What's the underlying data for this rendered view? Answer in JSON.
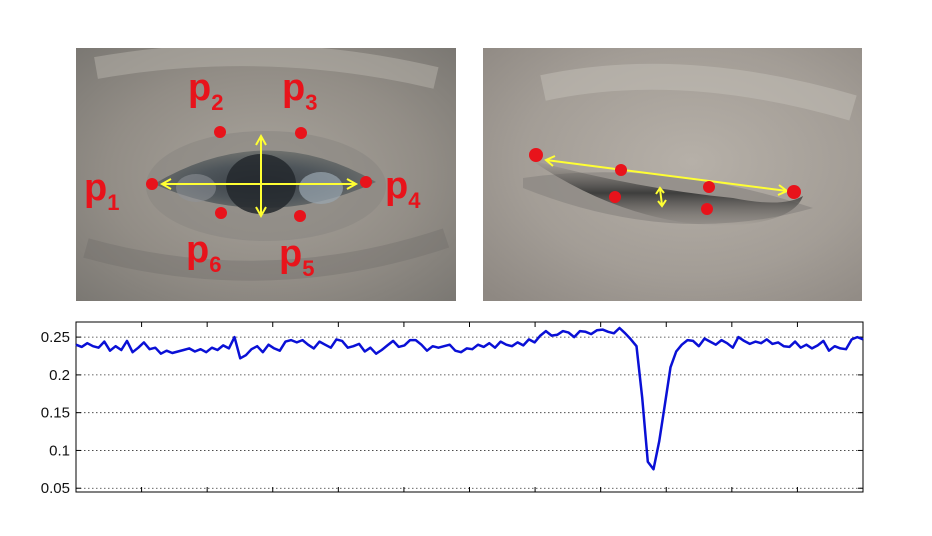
{
  "open_eye": {
    "landmarks": [
      {
        "id": "p1",
        "base": "p",
        "sub": "1"
      },
      {
        "id": "p2",
        "base": "p",
        "sub": "2"
      },
      {
        "id": "p3",
        "base": "p",
        "sub": "3"
      },
      {
        "id": "p4",
        "base": "p",
        "sub": "4"
      },
      {
        "id": "p5",
        "base": "p",
        "sub": "5"
      },
      {
        "id": "p6",
        "base": "p",
        "sub": "6"
      }
    ]
  },
  "colors": {
    "landmark": "#e8131b",
    "arrow": "#ffff33",
    "ear_line": "#0a10d6"
  },
  "chart_data": {
    "type": "line",
    "title": "",
    "xlabel": "",
    "ylabel": "",
    "ylim": [
      0.045,
      0.27
    ],
    "yticks": [
      "0.05",
      "0.1",
      "0.15",
      "0.2",
      "0.25"
    ],
    "grid": "horizontal dotted",
    "series": [
      {
        "values": [
          0.24,
          0.237,
          0.242,
          0.238,
          0.236,
          0.244,
          0.232,
          0.238,
          0.233,
          0.245,
          0.23,
          0.236,
          0.243,
          0.234,
          0.236,
          0.228,
          0.232,
          0.229,
          0.231,
          0.233,
          0.235,
          0.231,
          0.234,
          0.23,
          0.236,
          0.233,
          0.239,
          0.235,
          0.25,
          0.222,
          0.226,
          0.234,
          0.238,
          0.23,
          0.24,
          0.235,
          0.232,
          0.244,
          0.246,
          0.243,
          0.246,
          0.24,
          0.235,
          0.244,
          0.24,
          0.236,
          0.247,
          0.245,
          0.236,
          0.238,
          0.241,
          0.231,
          0.236,
          0.228,
          0.233,
          0.239,
          0.245,
          0.237,
          0.239,
          0.246,
          0.246,
          0.24,
          0.232,
          0.238,
          0.236,
          0.238,
          0.24,
          0.232,
          0.23,
          0.235,
          0.234,
          0.24,
          0.237,
          0.242,
          0.236,
          0.244,
          0.24,
          0.238,
          0.243,
          0.239,
          0.247,
          0.243,
          0.252,
          0.258,
          0.252,
          0.253,
          0.258,
          0.256,
          0.25,
          0.258,
          0.257,
          0.254,
          0.259,
          0.26,
          0.257,
          0.255,
          0.262,
          0.255,
          0.247,
          0.238,
          0.17,
          0.085,
          0.075,
          0.112,
          0.16,
          0.21,
          0.231,
          0.24,
          0.246,
          0.245,
          0.238,
          0.248,
          0.244,
          0.24,
          0.246,
          0.242,
          0.236,
          0.25,
          0.245,
          0.241,
          0.244,
          0.242,
          0.247,
          0.241,
          0.243,
          0.238,
          0.237,
          0.244,
          0.236,
          0.24,
          0.235,
          0.239,
          0.245,
          0.232,
          0.238,
          0.235,
          0.234,
          0.247,
          0.25,
          0.247
        ]
      }
    ]
  }
}
